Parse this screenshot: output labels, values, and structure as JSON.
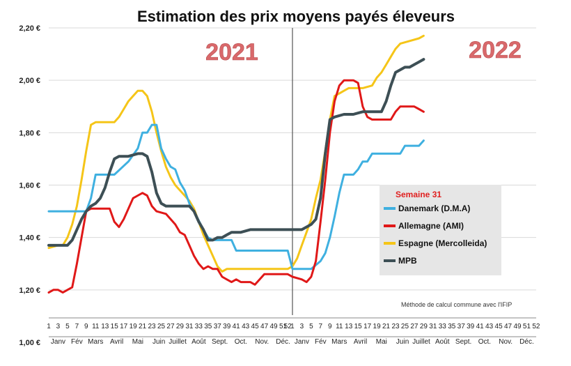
{
  "chart_data": {
    "type": "line",
    "title": "Estimation des prix moyens payés éleveurs",
    "xlabel": "",
    "ylabel": "",
    "ylim": [
      1.0,
      2.2
    ],
    "ytick_values": [
      1.0,
      1.2,
      1.4,
      1.6,
      1.8,
      2.0,
      2.2
    ],
    "ytick_labels": [
      "1,00 €",
      "1,20 €",
      "1,40 €",
      "1,60 €",
      "1,80 €",
      "2,00 €",
      "2,20 €"
    ],
    "week_labels_2021": [
      "1",
      "3",
      "5",
      "7",
      "9",
      "11",
      "13",
      "15",
      "17",
      "19",
      "21",
      "23",
      "25",
      "27",
      "29",
      "31",
      "33",
      "35",
      "37",
      "39",
      "41",
      "43",
      "45",
      "47",
      "49",
      "51"
    ],
    "week_labels_2022": [
      "52",
      "1",
      "3",
      "5",
      "7",
      "9",
      "11",
      "13",
      "15",
      "17",
      "19",
      "21",
      "23",
      "25",
      "27",
      "29",
      "31",
      "33",
      "35",
      "37",
      "39",
      "41",
      "43",
      "45",
      "47",
      "49",
      "51",
      "52"
    ],
    "months": [
      "Janv",
      "Fév",
      "Mars",
      "Avril",
      "Mai",
      "Juin",
      "Juillet",
      "Août",
      "Sept.",
      "Oct.",
      "Nov.",
      "Déc.",
      "Janv",
      "Fév",
      "Mars",
      "Avril",
      "Mai",
      "Juin",
      "Juillet",
      "Août",
      "Sept.",
      "Oct.",
      "Nov.",
      "Déc."
    ],
    "annotations": {
      "year_left": "2021",
      "year_right": "2022",
      "note": "Méthode de calcul commune avec l'IFIP"
    },
    "legend": {
      "title": "Semaine 31",
      "position": "center-right"
    },
    "x_unit": "week index (1 = week 1 of 2021, 53 = week 1 of 2022)",
    "series": [
      {
        "name": "Danemark (D.M.A)",
        "color": "#3fb0e0",
        "points": [
          [
            1,
            1.5
          ],
          [
            9,
            1.5
          ],
          [
            10,
            1.55
          ],
          [
            11,
            1.64
          ],
          [
            15,
            1.64
          ],
          [
            18,
            1.69
          ],
          [
            20,
            1.74
          ],
          [
            21,
            1.8
          ],
          [
            22,
            1.8
          ],
          [
            23,
            1.83
          ],
          [
            24,
            1.83
          ],
          [
            25,
            1.74
          ],
          [
            26,
            1.7
          ],
          [
            27,
            1.67
          ],
          [
            28,
            1.66
          ],
          [
            29,
            1.61
          ],
          [
            30,
            1.58
          ],
          [
            31,
            1.53
          ],
          [
            32,
            1.5
          ],
          [
            34,
            1.43
          ],
          [
            35,
            1.4
          ],
          [
            36,
            1.39
          ],
          [
            38,
            1.39
          ],
          [
            40,
            1.39
          ],
          [
            41,
            1.35
          ],
          [
            52,
            1.35
          ],
          [
            53,
            1.28
          ],
          [
            57,
            1.28
          ],
          [
            59,
            1.31
          ],
          [
            60,
            1.34
          ],
          [
            61,
            1.4
          ],
          [
            62,
            1.48
          ],
          [
            63,
            1.57
          ],
          [
            64,
            1.64
          ],
          [
            66,
            1.64
          ],
          [
            67,
            1.66
          ],
          [
            68,
            1.69
          ],
          [
            69,
            1.69
          ],
          [
            70,
            1.72
          ],
          [
            76,
            1.72
          ],
          [
            77,
            1.75
          ],
          [
            80,
            1.75
          ],
          [
            81,
            1.77
          ]
        ]
      },
      {
        "name": "Allemagne (AMI)",
        "color": "#e01818",
        "points": [
          [
            1,
            1.19
          ],
          [
            2,
            1.2
          ],
          [
            3,
            1.2
          ],
          [
            4,
            1.19
          ],
          [
            5,
            1.2
          ],
          [
            6,
            1.21
          ],
          [
            7,
            1.3
          ],
          [
            8,
            1.4
          ],
          [
            9,
            1.5
          ],
          [
            10,
            1.51
          ],
          [
            11,
            1.51
          ],
          [
            14,
            1.51
          ],
          [
            15,
            1.46
          ],
          [
            16,
            1.44
          ],
          [
            17,
            1.47
          ],
          [
            18,
            1.51
          ],
          [
            19,
            1.55
          ],
          [
            20,
            1.56
          ],
          [
            21,
            1.57
          ],
          [
            22,
            1.56
          ],
          [
            23,
            1.52
          ],
          [
            24,
            1.5
          ],
          [
            26,
            1.49
          ],
          [
            28,
            1.45
          ],
          [
            29,
            1.42
          ],
          [
            30,
            1.41
          ],
          [
            31,
            1.37
          ],
          [
            32,
            1.33
          ],
          [
            33,
            1.3
          ],
          [
            34,
            1.28
          ],
          [
            35,
            1.29
          ],
          [
            36,
            1.28
          ],
          [
            37,
            1.28
          ],
          [
            38,
            1.25
          ],
          [
            39,
            1.24
          ],
          [
            40,
            1.23
          ],
          [
            41,
            1.24
          ],
          [
            42,
            1.23
          ],
          [
            44,
            1.23
          ],
          [
            45,
            1.22
          ],
          [
            46,
            1.24
          ],
          [
            47,
            1.26
          ],
          [
            52,
            1.26
          ],
          [
            53,
            1.25
          ],
          [
            55,
            1.24
          ],
          [
            56,
            1.23
          ],
          [
            57,
            1.25
          ],
          [
            58,
            1.31
          ],
          [
            59,
            1.46
          ],
          [
            60,
            1.62
          ],
          [
            61,
            1.8
          ],
          [
            62,
            1.92
          ],
          [
            63,
            1.98
          ],
          [
            64,
            2.0
          ],
          [
            66,
            2.0
          ],
          [
            67,
            1.99
          ],
          [
            68,
            1.9
          ],
          [
            69,
            1.86
          ],
          [
            70,
            1.85
          ],
          [
            74,
            1.85
          ],
          [
            75,
            1.88
          ],
          [
            76,
            1.9
          ],
          [
            79,
            1.9
          ],
          [
            80,
            1.89
          ],
          [
            81,
            1.88
          ]
        ]
      },
      {
        "name": "Espagne (Mercolleida)",
        "color": "#f5c518",
        "points": [
          [
            1,
            1.36
          ],
          [
            3,
            1.37
          ],
          [
            4,
            1.37
          ],
          [
            5,
            1.4
          ],
          [
            6,
            1.45
          ],
          [
            7,
            1.52
          ],
          [
            8,
            1.62
          ],
          [
            9,
            1.73
          ],
          [
            10,
            1.83
          ],
          [
            11,
            1.84
          ],
          [
            15,
            1.84
          ],
          [
            16,
            1.86
          ],
          [
            17,
            1.89
          ],
          [
            18,
            1.92
          ],
          [
            19,
            1.94
          ],
          [
            20,
            1.96
          ],
          [
            21,
            1.96
          ],
          [
            22,
            1.94
          ],
          [
            23,
            1.88
          ],
          [
            24,
            1.8
          ],
          [
            25,
            1.73
          ],
          [
            26,
            1.67
          ],
          [
            27,
            1.63
          ],
          [
            28,
            1.6
          ],
          [
            29,
            1.58
          ],
          [
            30,
            1.56
          ],
          [
            31,
            1.54
          ],
          [
            32,
            1.51
          ],
          [
            33,
            1.46
          ],
          [
            34,
            1.41
          ],
          [
            35,
            1.37
          ],
          [
            36,
            1.33
          ],
          [
            37,
            1.29
          ],
          [
            38,
            1.27
          ],
          [
            39,
            1.28
          ],
          [
            40,
            1.28
          ],
          [
            52,
            1.28
          ],
          [
            53,
            1.29
          ],
          [
            54,
            1.32
          ],
          [
            55,
            1.37
          ],
          [
            56,
            1.42
          ],
          [
            57,
            1.47
          ],
          [
            58,
            1.55
          ],
          [
            59,
            1.62
          ],
          [
            60,
            1.73
          ],
          [
            61,
            1.85
          ],
          [
            62,
            1.94
          ],
          [
            63,
            1.95
          ],
          [
            64,
            1.96
          ],
          [
            65,
            1.97
          ],
          [
            68,
            1.97
          ],
          [
            70,
            1.98
          ],
          [
            71,
            2.01
          ],
          [
            72,
            2.03
          ],
          [
            73,
            2.06
          ],
          [
            74,
            2.09
          ],
          [
            75,
            2.12
          ],
          [
            76,
            2.14
          ],
          [
            78,
            2.15
          ],
          [
            80,
            2.16
          ],
          [
            81,
            2.17
          ]
        ]
      },
      {
        "name": "MPB",
        "color": "#3d4f55",
        "points": [
          [
            1,
            1.37
          ],
          [
            3,
            1.37
          ],
          [
            5,
            1.37
          ],
          [
            6,
            1.39
          ],
          [
            7,
            1.43
          ],
          [
            8,
            1.47
          ],
          [
            9,
            1.5
          ],
          [
            10,
            1.52
          ],
          [
            11,
            1.53
          ],
          [
            12,
            1.55
          ],
          [
            13,
            1.59
          ],
          [
            14,
            1.65
          ],
          [
            15,
            1.7
          ],
          [
            16,
            1.71
          ],
          [
            18,
            1.71
          ],
          [
            20,
            1.72
          ],
          [
            21,
            1.72
          ],
          [
            22,
            1.71
          ],
          [
            23,
            1.65
          ],
          [
            24,
            1.57
          ],
          [
            25,
            1.53
          ],
          [
            26,
            1.52
          ],
          [
            31,
            1.52
          ],
          [
            32,
            1.5
          ],
          [
            33,
            1.46
          ],
          [
            34,
            1.43
          ],
          [
            35,
            1.39
          ],
          [
            36,
            1.39
          ],
          [
            37,
            1.4
          ],
          [
            38,
            1.4
          ],
          [
            39,
            1.41
          ],
          [
            40,
            1.42
          ],
          [
            42,
            1.42
          ],
          [
            44,
            1.43
          ],
          [
            52,
            1.43
          ],
          [
            55,
            1.43
          ],
          [
            56,
            1.44
          ],
          [
            57,
            1.45
          ],
          [
            58,
            1.47
          ],
          [
            59,
            1.55
          ],
          [
            60,
            1.72
          ],
          [
            61,
            1.85
          ],
          [
            62,
            1.86
          ],
          [
            64,
            1.87
          ],
          [
            66,
            1.87
          ],
          [
            68,
            1.88
          ],
          [
            70,
            1.88
          ],
          [
            72,
            1.88
          ],
          [
            73,
            1.92
          ],
          [
            74,
            1.98
          ],
          [
            75,
            2.03
          ],
          [
            76,
            2.04
          ],
          [
            77,
            2.05
          ],
          [
            78,
            2.05
          ],
          [
            79,
            2.06
          ],
          [
            80,
            2.07
          ],
          [
            81,
            2.08
          ]
        ]
      }
    ]
  }
}
